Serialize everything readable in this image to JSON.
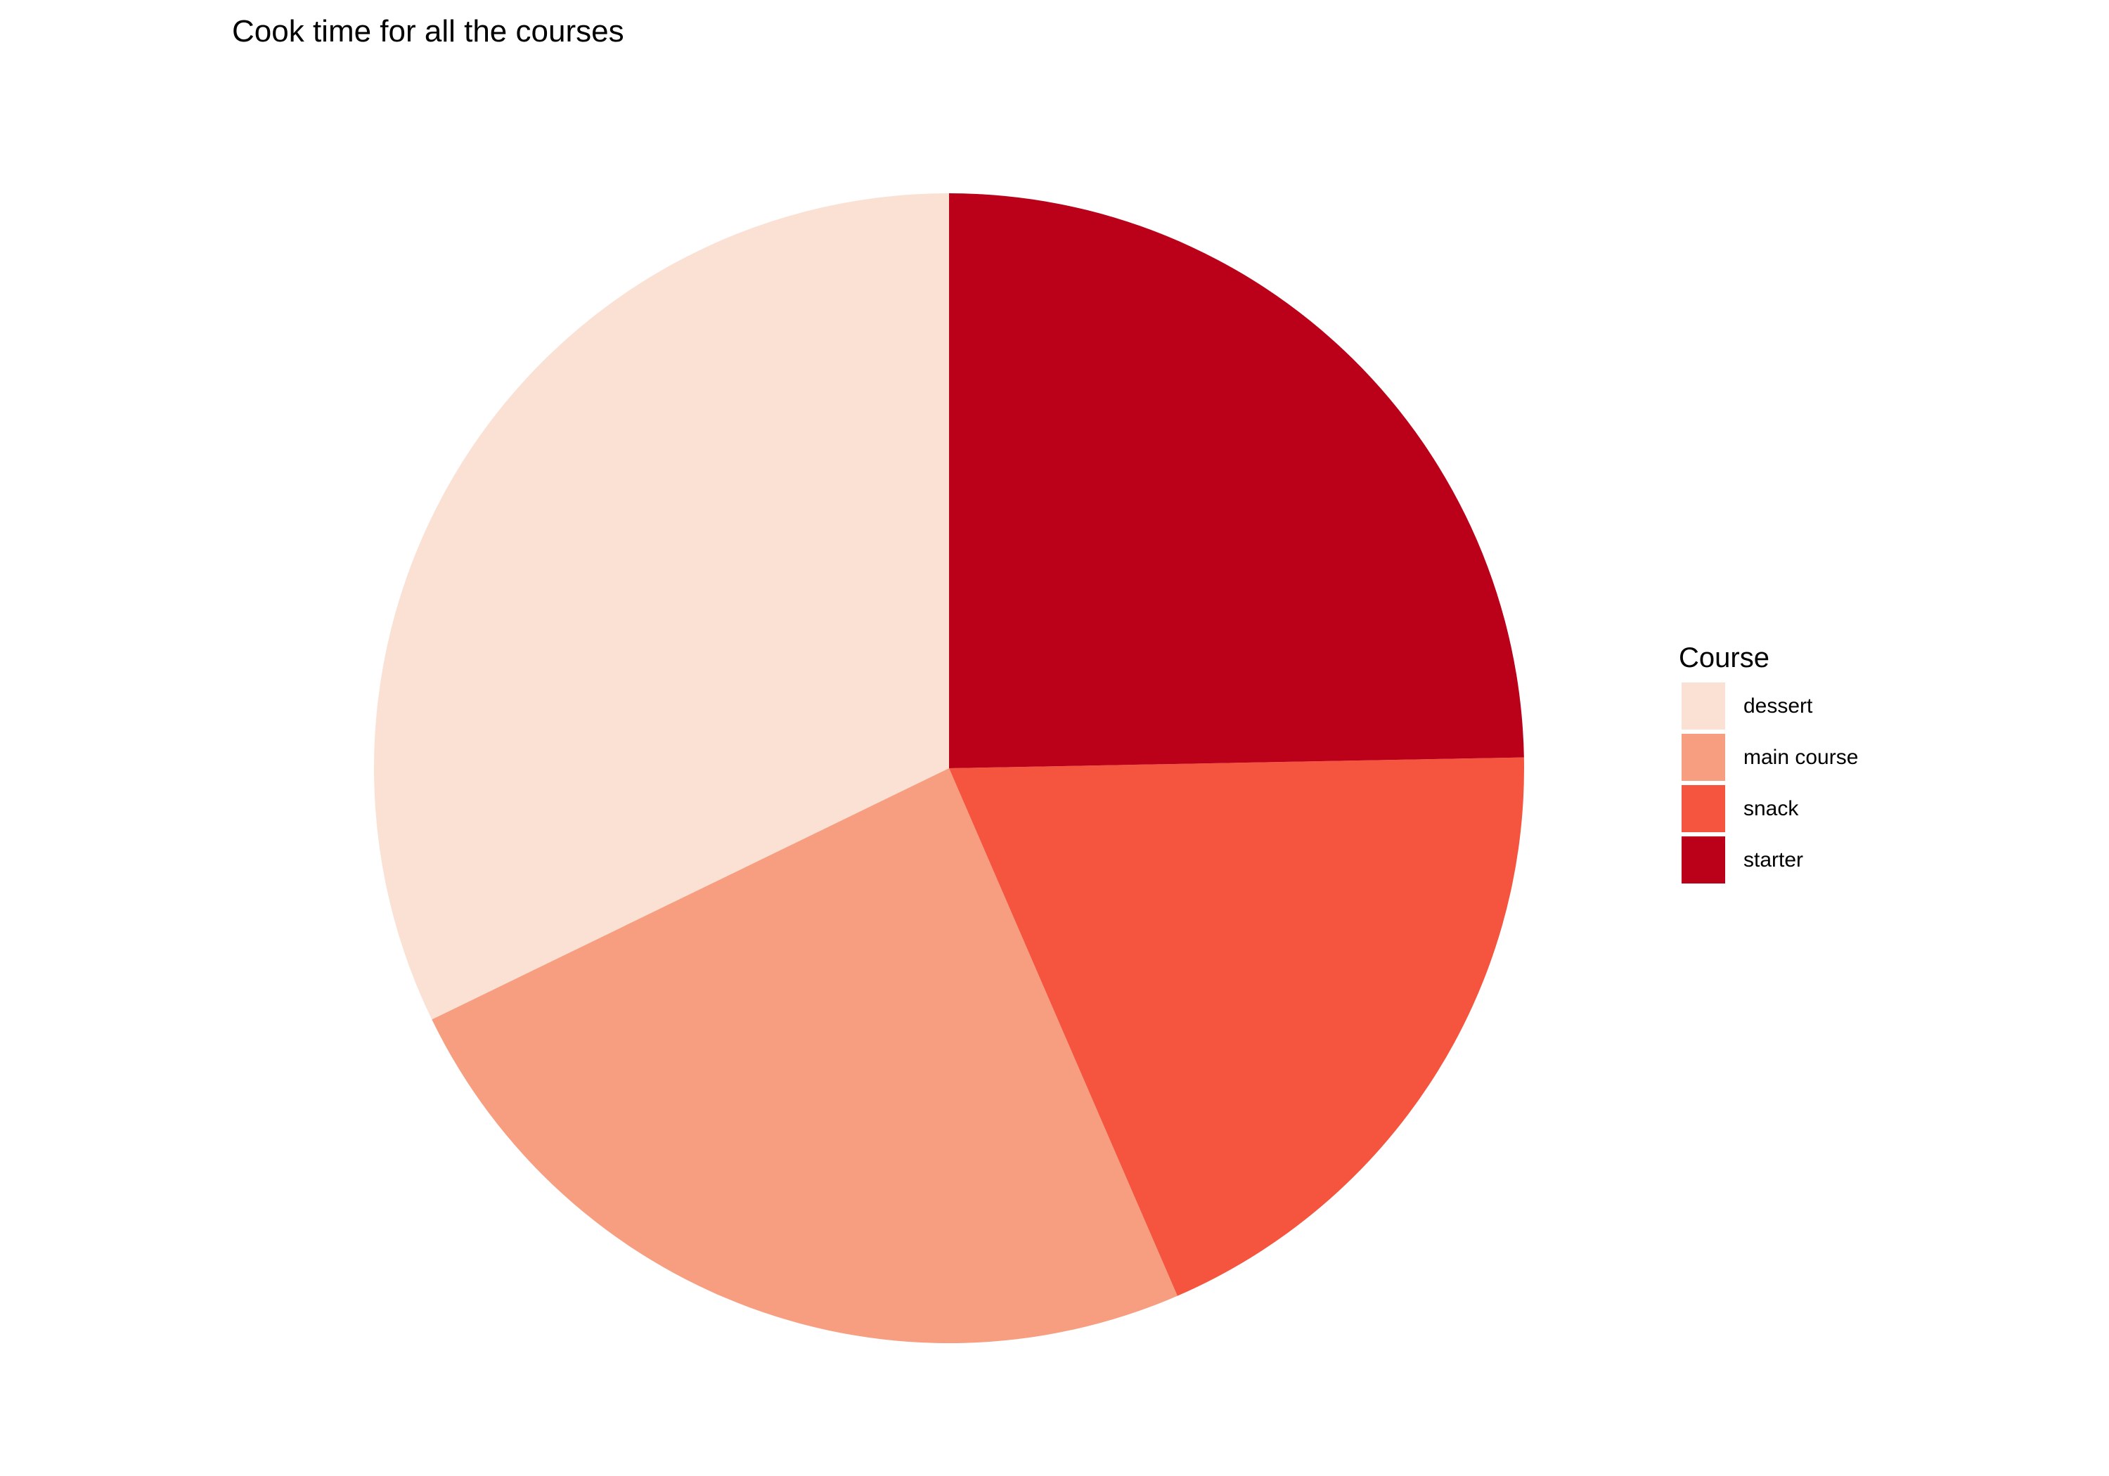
{
  "chart_data": {
    "type": "pie",
    "title": "Cook time for all the courses",
    "legend_title": "Course",
    "legend_position": "right",
    "categories": [
      "dessert",
      "main course",
      "snack",
      "starter"
    ],
    "values": [
      32.2,
      24.3,
      18.8,
      24.7
    ],
    "value_unit": "percent of total cook time",
    "colors": [
      "#FBE0D4",
      "#F79E80",
      "#F5553E",
      "#BB001A"
    ]
  }
}
